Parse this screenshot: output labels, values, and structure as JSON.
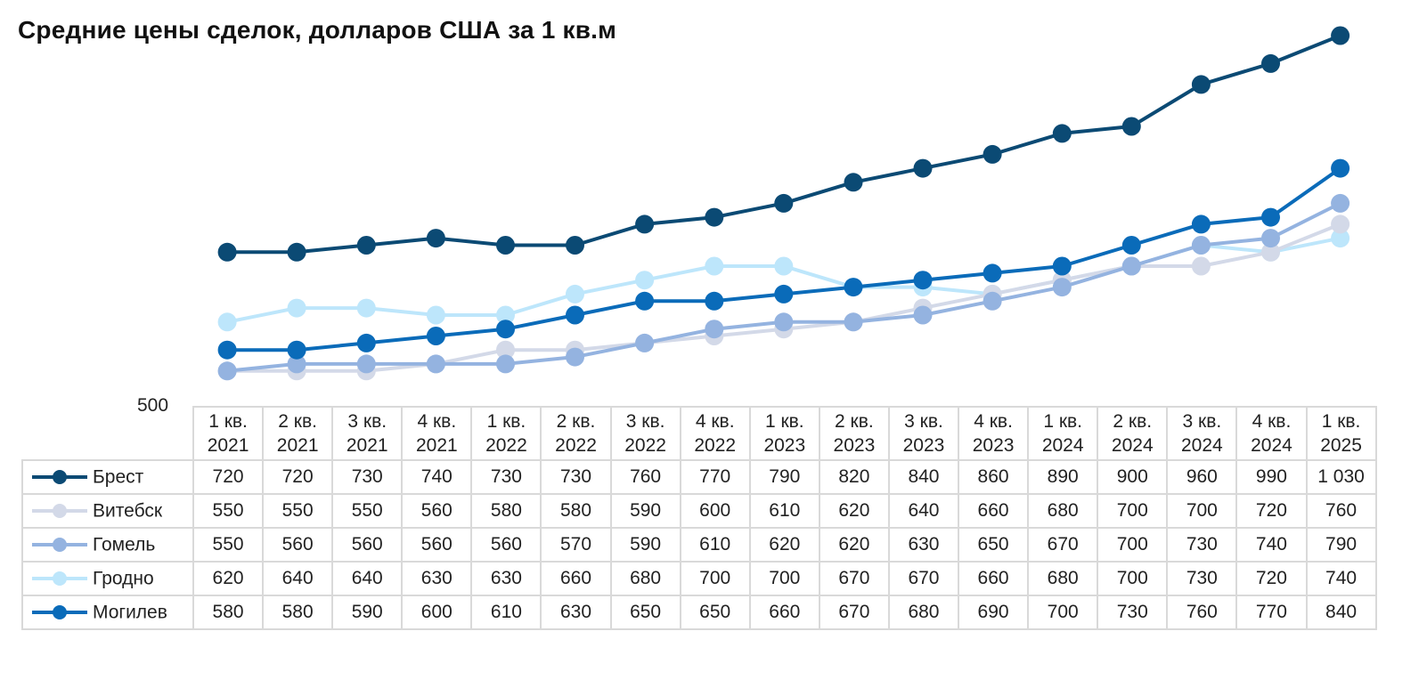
{
  "chart_data": {
    "type": "line",
    "title": "Средние цены сделок, долларов США за 1 кв.м",
    "categories": [
      [
        "1 кв.",
        "2021"
      ],
      [
        "2 кв.",
        "2021"
      ],
      [
        "3 кв.",
        "2021"
      ],
      [
        "4 кв.",
        "2021"
      ],
      [
        "1 кв.",
        "2022"
      ],
      [
        "2 кв.",
        "2022"
      ],
      [
        "3 кв.",
        "2022"
      ],
      [
        "4 кв.",
        "2022"
      ],
      [
        "1 кв.",
        "2023"
      ],
      [
        "2 кв.",
        "2023"
      ],
      [
        "3 кв.",
        "2023"
      ],
      [
        "4 кв.",
        "2023"
      ],
      [
        "1 кв.",
        "2024"
      ],
      [
        "2 кв.",
        "2024"
      ],
      [
        "3 кв.",
        "2024"
      ],
      [
        "4 кв.",
        "2024"
      ],
      [
        "1 кв.",
        "2025"
      ]
    ],
    "ytick_label": "500",
    "ylim": [
      500,
      1030
    ],
    "legend_position": "data-table-left",
    "series": [
      {
        "name": "Гродно",
        "color": "#bde6fb",
        "values": [
          620,
          640,
          640,
          630,
          630,
          660,
          680,
          700,
          700,
          670,
          670,
          660,
          680,
          700,
          730,
          720,
          740
        ],
        "labels": [
          "620",
          "640",
          "640",
          "630",
          "630",
          "660",
          "680",
          "700",
          "700",
          "670",
          "670",
          "660",
          "680",
          "700",
          "730",
          "720",
          "740"
        ]
      },
      {
        "name": "Витебск",
        "color": "#d3d9e8",
        "values": [
          550,
          550,
          550,
          560,
          580,
          580,
          590,
          600,
          610,
          620,
          640,
          660,
          680,
          700,
          700,
          720,
          760
        ],
        "labels": [
          "550",
          "550",
          "550",
          "560",
          "580",
          "580",
          "590",
          "600",
          "610",
          "620",
          "640",
          "660",
          "680",
          "700",
          "700",
          "720",
          "760"
        ]
      },
      {
        "name": "Гомель",
        "color": "#94b3e0",
        "values": [
          550,
          560,
          560,
          560,
          560,
          570,
          590,
          610,
          620,
          620,
          630,
          650,
          670,
          700,
          730,
          740,
          790
        ],
        "labels": [
          "550",
          "560",
          "560",
          "560",
          "560",
          "570",
          "590",
          "610",
          "620",
          "620",
          "630",
          "650",
          "670",
          "700",
          "730",
          "740",
          "790"
        ]
      },
      {
        "name": "Могилев",
        "color": "#0a6bb9",
        "values": [
          580,
          580,
          590,
          600,
          610,
          630,
          650,
          650,
          660,
          670,
          680,
          690,
          700,
          730,
          760,
          770,
          840
        ],
        "labels": [
          "580",
          "580",
          "590",
          "600",
          "610",
          "630",
          "650",
          "650",
          "660",
          "670",
          "680",
          "690",
          "700",
          "730",
          "760",
          "770",
          "840"
        ]
      },
      {
        "name": "Брест",
        "color": "#0b4a74",
        "values": [
          720,
          720,
          730,
          740,
          730,
          730,
          760,
          770,
          790,
          820,
          840,
          860,
          890,
          900,
          960,
          990,
          1030
        ],
        "labels": [
          "720",
          "720",
          "730",
          "740",
          "730",
          "730",
          "760",
          "770",
          "790",
          "820",
          "840",
          "860",
          "890",
          "900",
          "960",
          "990",
          "1 030"
        ]
      }
    ],
    "table_order": [
      "Брест",
      "Витебск",
      "Гомель",
      "Гродно",
      "Могилев"
    ]
  }
}
